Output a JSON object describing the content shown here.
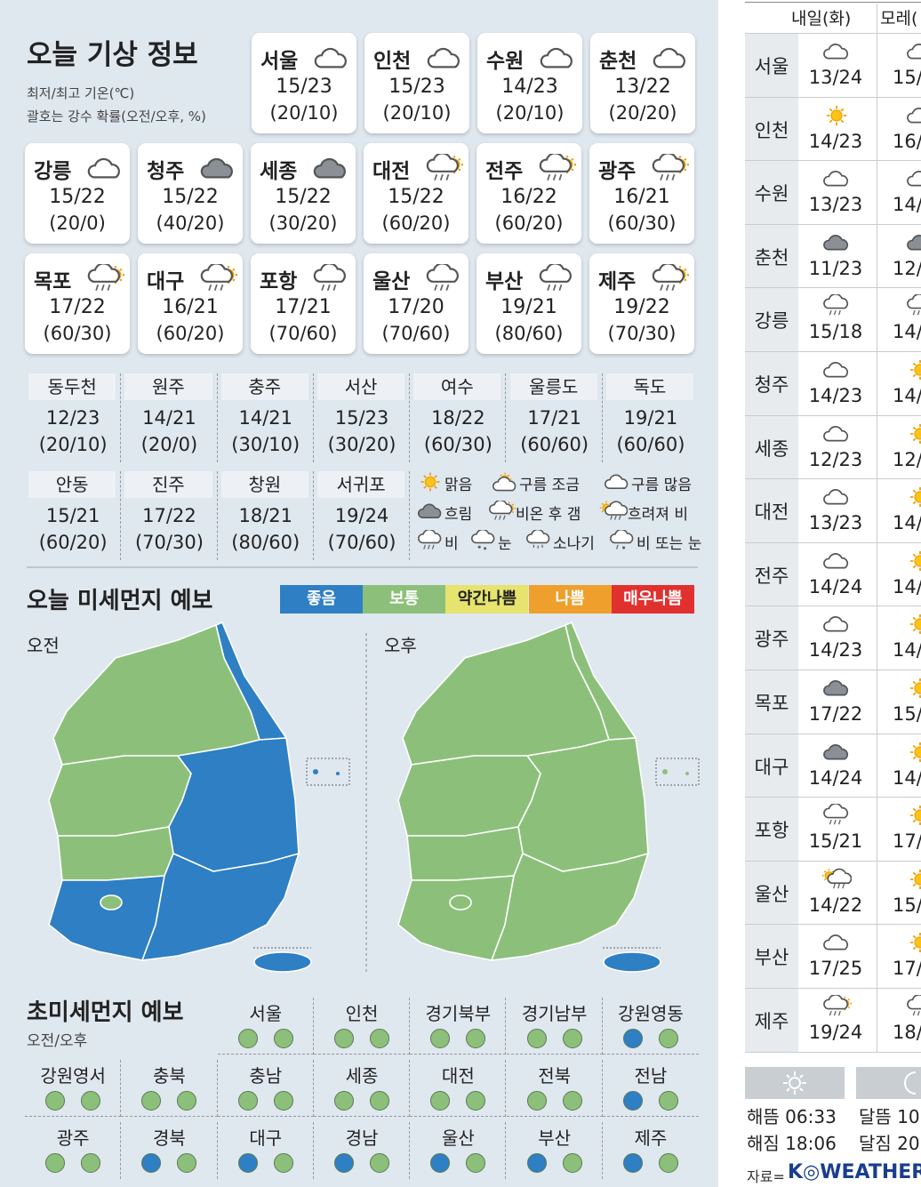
{
  "header": {
    "title": "오늘 기상 정보",
    "note1": "최저/최고 기온(℃)",
    "note2": "괄호는 강수 확률(오전/오후, %)"
  },
  "cards": [
    {
      "name": "서울",
      "icon": "cloud",
      "temp": "15/23",
      "rain": "(20/10)"
    },
    {
      "name": "인천",
      "icon": "cloud",
      "temp": "15/23",
      "rain": "(20/10)"
    },
    {
      "name": "수원",
      "icon": "cloud",
      "temp": "14/23",
      "rain": "(20/10)"
    },
    {
      "name": "춘천",
      "icon": "cloud",
      "temp": "13/22",
      "rain": "(20/20)"
    },
    {
      "name": "강릉",
      "icon": "cloud",
      "temp": "15/22",
      "rain": "(20/0)"
    },
    {
      "name": "청주",
      "icon": "overcast",
      "temp": "15/22",
      "rain": "(40/20)"
    },
    {
      "name": "세종",
      "icon": "overcast",
      "temp": "15/22",
      "rain": "(30/20)"
    },
    {
      "name": "대전",
      "icon": "rainclear",
      "temp": "15/22",
      "rain": "(60/20)"
    },
    {
      "name": "전주",
      "icon": "rainclear",
      "temp": "16/22",
      "rain": "(60/20)"
    },
    {
      "name": "광주",
      "icon": "rainclear",
      "temp": "16/21",
      "rain": "(60/30)"
    },
    {
      "name": "목포",
      "icon": "rainclear",
      "temp": "17/22",
      "rain": "(60/30)"
    },
    {
      "name": "대구",
      "icon": "rainclear",
      "temp": "16/21",
      "rain": "(60/20)"
    },
    {
      "name": "포항",
      "icon": "rain",
      "temp": "17/21",
      "rain": "(70/60)"
    },
    {
      "name": "울산",
      "icon": "rain",
      "temp": "17/20",
      "rain": "(70/60)"
    },
    {
      "name": "부산",
      "icon": "rain",
      "temp": "19/21",
      "rain": "(80/60)"
    },
    {
      "name": "제주",
      "icon": "rainclear",
      "temp": "19/22",
      "rain": "(70/30)"
    }
  ],
  "table": [
    {
      "name": "동두천",
      "temp": "12/23",
      "rain": "(20/10)"
    },
    {
      "name": "원주",
      "temp": "14/21",
      "rain": "(20/0)"
    },
    {
      "name": "충주",
      "temp": "14/21",
      "rain": "(30/10)"
    },
    {
      "name": "서산",
      "temp": "15/23",
      "rain": "(30/20)"
    },
    {
      "name": "여수",
      "temp": "18/22",
      "rain": "(60/30)"
    },
    {
      "name": "울릉도",
      "temp": "17/21",
      "rain": "(60/60)"
    },
    {
      "name": "독도",
      "temp": "19/21",
      "rain": "(60/60)"
    },
    {
      "name": "안동",
      "temp": "15/21",
      "rain": "(60/20)"
    },
    {
      "name": "진주",
      "temp": "17/22",
      "rain": "(70/30)"
    },
    {
      "name": "창원",
      "temp": "18/21",
      "rain": "(80/60)"
    },
    {
      "name": "서귀포",
      "temp": "19/24",
      "rain": "(70/60)"
    }
  ],
  "legend": [
    {
      "icon": "sun",
      "label": "맑음"
    },
    {
      "icon": "partly",
      "label": "구름 조금"
    },
    {
      "icon": "cloud",
      "label": "구름 많음"
    },
    {
      "icon": "overcast",
      "label": "흐림"
    },
    {
      "icon": "rainclear",
      "label": "비온 후 갬"
    },
    {
      "icon": "rainlater",
      "label": "흐려져 비"
    },
    {
      "icon": "rain",
      "label": "비"
    },
    {
      "icon": "snow",
      "label": "눈"
    },
    {
      "icon": "shower",
      "label": "소나기"
    },
    {
      "icon": "sleet",
      "label": "비 또는 눈"
    }
  ],
  "dust": {
    "title": "오늘 미세먼지 예보",
    "am": "오전",
    "pm": "오후",
    "levels": [
      {
        "label": "좋음",
        "color": "#2e7fc4"
      },
      {
        "label": "보통",
        "color": "#8cc07a"
      },
      {
        "label": "약간나쁨",
        "color": "#e6e36f"
      },
      {
        "label": "나쁨",
        "color": "#ee9f2c"
      },
      {
        "label": "매우나쁨",
        "color": "#e0312f"
      }
    ]
  },
  "ultrafine": {
    "title": "초미세먼지 예보",
    "subtitle": "오전/오후",
    "regions": [
      {
        "name": "서울",
        "am": "보통",
        "pm": "보통"
      },
      {
        "name": "인천",
        "am": "보통",
        "pm": "보통"
      },
      {
        "name": "경기북부",
        "am": "보통",
        "pm": "보통"
      },
      {
        "name": "경기남부",
        "am": "보통",
        "pm": "보통"
      },
      {
        "name": "강원영동",
        "am": "좋음",
        "pm": "보통"
      },
      {
        "name": "강원영서",
        "am": "보통",
        "pm": "보통"
      },
      {
        "name": "충북",
        "am": "보통",
        "pm": "보통"
      },
      {
        "name": "충남",
        "am": "보통",
        "pm": "보통"
      },
      {
        "name": "세종",
        "am": "보통",
        "pm": "보통"
      },
      {
        "name": "대전",
        "am": "보통",
        "pm": "보통"
      },
      {
        "name": "전북",
        "am": "보통",
        "pm": "보통"
      },
      {
        "name": "전남",
        "am": "좋음",
        "pm": "보통"
      },
      {
        "name": "광주",
        "am": "보통",
        "pm": "보통"
      },
      {
        "name": "경북",
        "am": "좋음",
        "pm": "보통"
      },
      {
        "name": "대구",
        "am": "좋음",
        "pm": "보통"
      },
      {
        "name": "경남",
        "am": "좋음",
        "pm": "보통"
      },
      {
        "name": "울산",
        "am": "좋음",
        "pm": "보통"
      },
      {
        "name": "부산",
        "am": "좋음",
        "pm": "보통"
      },
      {
        "name": "제주",
        "am": "좋음",
        "pm": "보통"
      }
    ]
  },
  "forecast": {
    "headers": [
      "내일(화)",
      "모레("
    ],
    "rows": [
      {
        "name": "서울",
        "icon": "cloud",
        "d1": "13/24",
        "icon2": "cloud",
        "d2": "15/"
      },
      {
        "name": "인천",
        "icon": "sun",
        "d1": "14/23",
        "icon2": "cloud",
        "d2": "16/"
      },
      {
        "name": "수원",
        "icon": "cloud",
        "d1": "13/23",
        "icon2": "cloud",
        "d2": "14/"
      },
      {
        "name": "춘천",
        "icon": "overcast",
        "d1": "11/23",
        "icon2": "overcast",
        "d2": "12/"
      },
      {
        "name": "강릉",
        "icon": "rain",
        "d1": "15/18",
        "icon2": "rain",
        "d2": "14/"
      },
      {
        "name": "청주",
        "icon": "cloud",
        "d1": "14/23",
        "icon2": "sun",
        "d2": "14/"
      },
      {
        "name": "세종",
        "icon": "cloud",
        "d1": "12/23",
        "icon2": "sun",
        "d2": "12/"
      },
      {
        "name": "대전",
        "icon": "cloud",
        "d1": "13/23",
        "icon2": "sun",
        "d2": "14/"
      },
      {
        "name": "전주",
        "icon": "cloud",
        "d1": "14/24",
        "icon2": "sun",
        "d2": "14/"
      },
      {
        "name": "광주",
        "icon": "cloud",
        "d1": "14/23",
        "icon2": "sun",
        "d2": "14/"
      },
      {
        "name": "목포",
        "icon": "overcast",
        "d1": "17/22",
        "icon2": "sun",
        "d2": "15/"
      },
      {
        "name": "대구",
        "icon": "overcast",
        "d1": "14/24",
        "icon2": "sun",
        "d2": "14/"
      },
      {
        "name": "포항",
        "icon": "rain",
        "d1": "15/21",
        "icon2": "sun",
        "d2": "17/"
      },
      {
        "name": "울산",
        "icon": "rainlater",
        "d1": "14/22",
        "icon2": "sun",
        "d2": "15/"
      },
      {
        "name": "부산",
        "icon": "cloud",
        "d1": "17/25",
        "icon2": "sun",
        "d2": "17/"
      },
      {
        "name": "제주",
        "icon": "rainclear",
        "d1": "19/24",
        "icon2": "rain",
        "d2": "18/"
      }
    ]
  },
  "sun": {
    "sunrise": "해뜸 06:33",
    "sunset": "해짐 18:06",
    "moonrise": "달뜸 10",
    "moonset": "달짐 20"
  },
  "source": {
    "label": "자료=",
    "brand": "K◎WEATHER"
  }
}
